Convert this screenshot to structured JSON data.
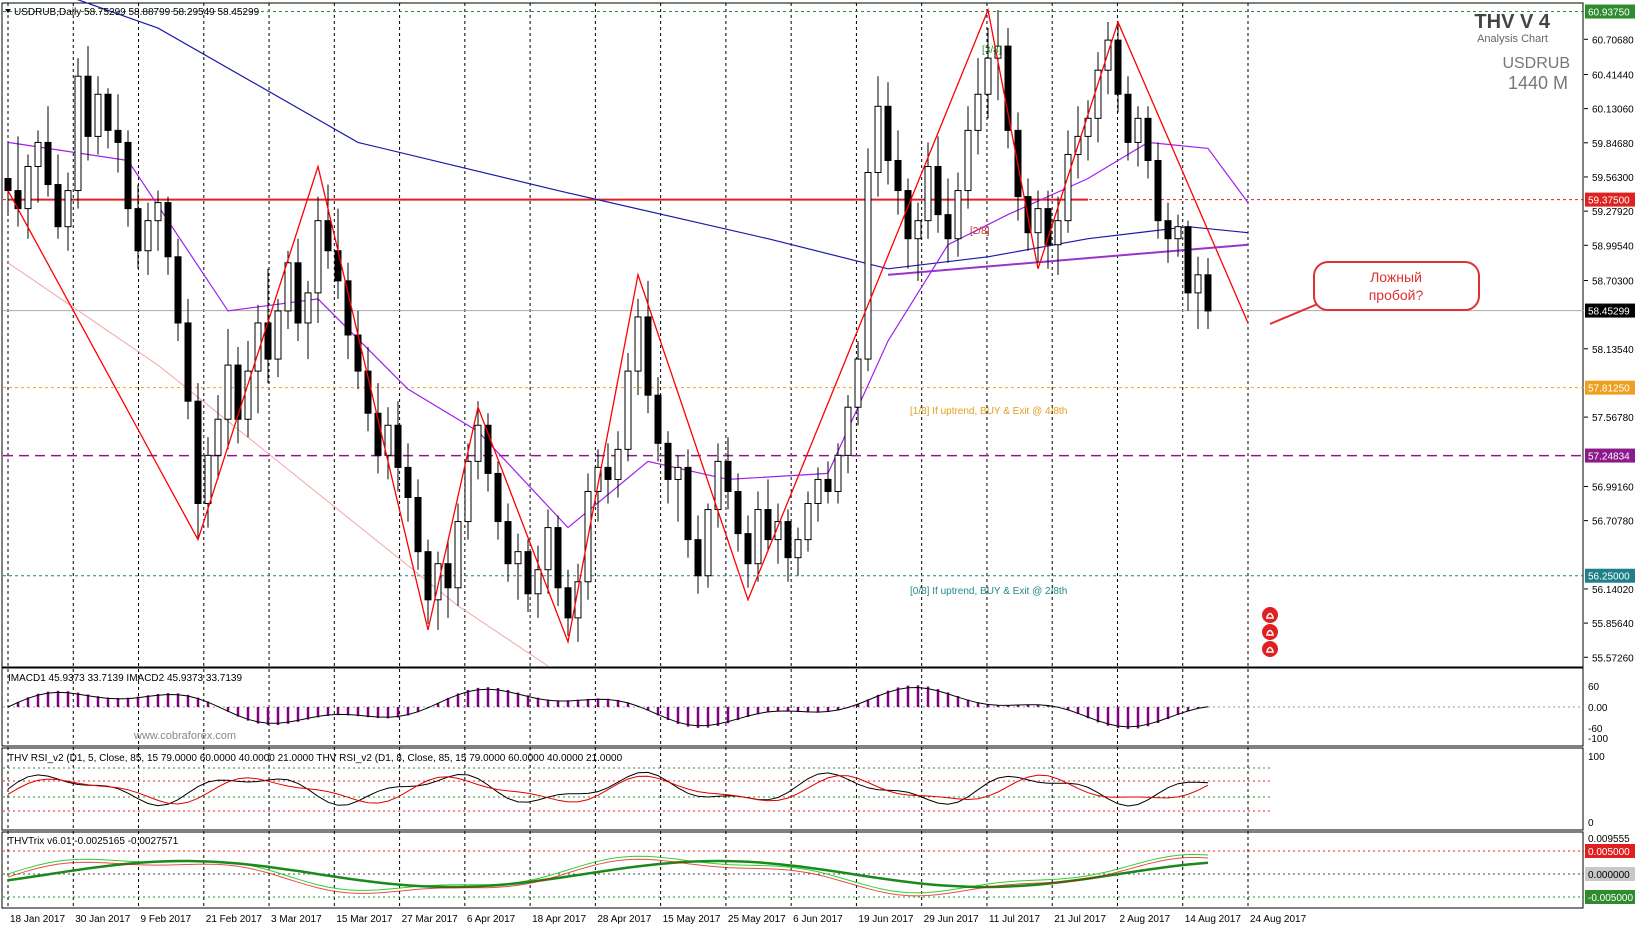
{
  "header": {
    "symbol_line": "USDRUB,Daily  58.75299 58.88799 58.29549 58.45299",
    "brand_title": "THV V 4",
    "brand_subtitle": "Analysis Chart",
    "symbol": "USDRUB",
    "timeframe": "1440 M",
    "watermark": "www.cobraforex.com"
  },
  "annotations": {
    "callout": [
      "Ложный",
      "пробой?"
    ],
    "murrey_top": "[3/8]",
    "murrey_mid": "[2/8]",
    "murrey_buy_4": "[1/8] If uptrend, BUY & Exit @ 4/8th",
    "murrey_buy_2": "[0/8] If uptrend, BUY & Exit @ 2/8th"
  },
  "colors": {
    "candle_up": "#ffffff",
    "candle_down": "#000000",
    "zigzag": "#ff0000",
    "ma_fast": "#a020f0",
    "ma_slow": "#1a1aa8",
    "ma_long": "#f4a6a6",
    "trendline": "#9933cc",
    "macd_hist": "#800080",
    "rsi_red": "#e00000",
    "trix_green": "#00b000",
    "trix_red": "#e00000"
  },
  "panels": {
    "macd": {
      "label": "IMACD1 45.9373 33.7139  IMACD2 45.9373 33.7139",
      "ticks": [
        "60",
        "0.00",
        "-60",
        "-100"
      ]
    },
    "rsi": {
      "label": "THV RSI_v2  (D1, 5, Close, 85, 15 79.0000 60.0000 40.0000 21.0000    THV RSI_v2  (D1, 8, Close, 85, 15 79.0000 60.0000 40.0000 21.0000",
      "ticks": [
        "100",
        "0"
      ]
    },
    "trix": {
      "label": "THVTrix v6.01 -0.0025165 -0.0027571",
      "ticks": [
        "0.009555",
        "0.005000",
        "0.000000",
        "-0.005000"
      ]
    }
  },
  "chart_data": {
    "type": "candlestick",
    "symbol": "USDRUB",
    "timeframe": "Daily",
    "ohlc_last": {
      "open": 58.75299,
      "high": 58.88799,
      "low": 58.29549,
      "close": 58.45299
    },
    "ylim": [
      55.5,
      61.0
    ],
    "y_ticks": [
      "60.70680",
      "60.41440",
      "60.13060",
      "59.84680",
      "59.56300",
      "59.27920",
      "58.99540",
      "58.70300",
      "58.13540",
      "57.56780",
      "56.99160",
      "56.70780",
      "56.14020",
      "55.85640",
      "55.57260"
    ],
    "x_ticks": [
      "18 Jan 2017",
      "30 Jan 2017",
      "9 Feb 2017",
      "21 Feb 2017",
      "3 Mar 2017",
      "15 Mar 2017",
      "27 Mar 2017",
      "6 Apr 2017",
      "18 Apr 2017",
      "28 Apr 2017",
      "15 May 2017",
      "25 May 2017",
      "6 Jun 2017",
      "19 Jun 2017",
      "29 Jun 2017",
      "11 Jul 2017",
      "21 Jul 2017",
      "2 Aug 2017",
      "14 Aug 2017",
      "24 Aug 2017"
    ],
    "price_levels": [
      {
        "value": 60.9375,
        "label": "60.93750",
        "color": "#2e8b2e"
      },
      {
        "value": 59.375,
        "label": "59.37500",
        "color": "#dd2222"
      },
      {
        "value": 58.45299,
        "label": "58.45299",
        "color": "#000000"
      },
      {
        "value": 57.8125,
        "label": "57.81250",
        "color": "#f0a020"
      },
      {
        "value": 57.24834,
        "label": "57.24834",
        "color": "#8b1a8b"
      },
      {
        "value": 56.25,
        "label": "56.25000",
        "color": "#20808a"
      }
    ],
    "candles": [
      [
        59.55,
        59.85,
        59.25,
        59.45
      ],
      [
        59.45,
        59.9,
        59.15,
        59.3
      ],
      [
        59.3,
        59.75,
        59.05,
        59.65
      ],
      [
        59.65,
        59.95,
        59.35,
        59.85
      ],
      [
        59.85,
        60.15,
        59.4,
        59.5
      ],
      [
        59.5,
        59.75,
        59.05,
        59.15
      ],
      [
        59.15,
        59.6,
        58.95,
        59.45
      ],
      [
        59.45,
        60.55,
        59.3,
        60.4
      ],
      [
        60.4,
        60.65,
        59.7,
        59.9
      ],
      [
        59.9,
        60.4,
        59.75,
        60.25
      ],
      [
        60.25,
        60.3,
        59.8,
        59.95
      ],
      [
        59.95,
        60.25,
        59.6,
        59.85
      ],
      [
        59.85,
        59.95,
        59.15,
        59.3
      ],
      [
        59.3,
        59.5,
        58.8,
        58.95
      ],
      [
        58.95,
        59.35,
        58.75,
        59.2
      ],
      [
        59.2,
        59.45,
        58.95,
        59.35
      ],
      [
        59.35,
        59.4,
        58.75,
        58.9
      ],
      [
        58.9,
        59.05,
        58.2,
        58.35
      ],
      [
        58.35,
        58.55,
        57.55,
        57.7
      ],
      [
        57.7,
        57.85,
        56.55,
        56.85
      ],
      [
        56.85,
        57.4,
        56.65,
        57.25
      ],
      [
        57.25,
        57.75,
        57.05,
        57.55
      ],
      [
        57.55,
        58.3,
        57.3,
        58.0
      ],
      [
        58.0,
        58.15,
        57.35,
        57.55
      ],
      [
        57.55,
        58.2,
        57.4,
        57.95
      ],
      [
        57.95,
        58.5,
        57.6,
        58.35
      ],
      [
        58.35,
        58.8,
        57.85,
        58.05
      ],
      [
        58.05,
        58.55,
        57.9,
        58.45
      ],
      [
        58.45,
        58.95,
        58.3,
        58.85
      ],
      [
        58.85,
        59.05,
        58.2,
        58.35
      ],
      [
        58.35,
        58.7,
        58.05,
        58.6
      ],
      [
        58.6,
        59.4,
        58.35,
        59.2
      ],
      [
        59.2,
        59.5,
        58.8,
        58.95
      ],
      [
        58.95,
        59.3,
        58.55,
        58.7
      ],
      [
        58.7,
        58.85,
        58.05,
        58.25
      ],
      [
        58.25,
        58.45,
        57.8,
        57.95
      ],
      [
        57.95,
        58.15,
        57.45,
        57.6
      ],
      [
        57.6,
        57.85,
        57.1,
        57.25
      ],
      [
        57.25,
        57.65,
        57.05,
        57.5
      ],
      [
        57.5,
        57.7,
        56.95,
        57.15
      ],
      [
        57.15,
        57.35,
        56.7,
        56.9
      ],
      [
        56.9,
        57.05,
        56.3,
        56.45
      ],
      [
        56.45,
        56.55,
        55.85,
        56.05
      ],
      [
        56.05,
        56.45,
        55.8,
        56.35
      ],
      [
        56.35,
        56.55,
        55.9,
        56.15
      ],
      [
        56.15,
        56.85,
        56.0,
        56.7
      ],
      [
        56.7,
        57.35,
        56.55,
        57.2
      ],
      [
        57.2,
        57.7,
        57.05,
        57.5
      ],
      [
        57.5,
        57.6,
        56.95,
        57.1
      ],
      [
        57.1,
        57.2,
        56.55,
        56.7
      ],
      [
        56.7,
        56.85,
        56.2,
        56.35
      ],
      [
        56.35,
        56.6,
        56.05,
        56.45
      ],
      [
        56.45,
        56.55,
        55.95,
        56.1
      ],
      [
        56.1,
        56.5,
        55.9,
        56.3
      ],
      [
        56.3,
        56.8,
        56.1,
        56.65
      ],
      [
        56.65,
        56.75,
        56.0,
        56.15
      ],
      [
        56.15,
        56.3,
        55.75,
        55.9
      ],
      [
        55.9,
        56.35,
        55.7,
        56.2
      ],
      [
        56.2,
        57.1,
        56.05,
        56.95
      ],
      [
        56.95,
        57.3,
        56.7,
        57.15
      ],
      [
        57.15,
        57.35,
        56.85,
        57.05
      ],
      [
        57.05,
        57.45,
        56.9,
        57.3
      ],
      [
        57.3,
        58.1,
        57.2,
        57.95
      ],
      [
        57.95,
        58.55,
        57.75,
        58.4
      ],
      [
        58.4,
        58.7,
        57.6,
        57.75
      ],
      [
        57.75,
        57.9,
        57.2,
        57.35
      ],
      [
        57.35,
        57.45,
        56.85,
        57.05
      ],
      [
        57.05,
        57.25,
        56.7,
        57.15
      ],
      [
        57.15,
        57.3,
        56.4,
        56.55
      ],
      [
        56.55,
        56.75,
        56.1,
        56.25
      ],
      [
        56.25,
        56.85,
        56.15,
        56.8
      ],
      [
        56.8,
        57.35,
        56.65,
        57.2
      ],
      [
        57.2,
        57.4,
        56.8,
        56.95
      ],
      [
        56.95,
        57.1,
        56.45,
        56.6
      ],
      [
        56.6,
        56.75,
        56.15,
        56.35
      ],
      [
        56.35,
        56.95,
        56.2,
        56.8
      ],
      [
        56.8,
        57.05,
        56.45,
        56.55
      ],
      [
        56.55,
        56.85,
        56.35,
        56.7
      ],
      [
        56.7,
        56.8,
        56.2,
        56.4
      ],
      [
        56.4,
        56.65,
        56.25,
        56.55
      ],
      [
        56.55,
        56.95,
        56.45,
        56.85
      ],
      [
        56.85,
        57.15,
        56.7,
        57.05
      ],
      [
        57.05,
        57.2,
        56.85,
        56.95
      ],
      [
        56.95,
        57.35,
        56.85,
        57.25
      ],
      [
        57.25,
        57.75,
        57.1,
        57.65
      ],
      [
        57.65,
        58.2,
        57.5,
        58.05
      ],
      [
        58.05,
        59.8,
        57.95,
        59.6
      ],
      [
        59.6,
        60.4,
        59.4,
        60.15
      ],
      [
        60.15,
        60.35,
        59.5,
        59.7
      ],
      [
        59.7,
        59.95,
        59.25,
        59.45
      ],
      [
        59.45,
        59.55,
        58.8,
        59.05
      ],
      [
        59.05,
        59.35,
        58.7,
        59.2
      ],
      [
        59.2,
        59.85,
        59.05,
        59.65
      ],
      [
        59.65,
        59.9,
        59.1,
        59.25
      ],
      [
        59.25,
        59.55,
        58.85,
        59.05
      ],
      [
        59.05,
        59.6,
        58.9,
        59.45
      ],
      [
        59.45,
        60.15,
        59.3,
        59.95
      ],
      [
        59.95,
        60.55,
        59.75,
        60.25
      ],
      [
        60.25,
        60.8,
        60.05,
        60.55
      ],
      [
        60.55,
        60.95,
        60.2,
        60.65
      ],
      [
        60.65,
        60.8,
        59.8,
        59.95
      ],
      [
        59.95,
        60.1,
        59.2,
        59.4
      ],
      [
        59.4,
        59.55,
        58.95,
        59.1
      ],
      [
        59.1,
        59.45,
        58.85,
        59.3
      ],
      [
        59.3,
        59.45,
        58.8,
        59.0
      ],
      [
        59.0,
        59.4,
        58.75,
        59.2
      ],
      [
        59.2,
        59.95,
        59.1,
        59.75
      ],
      [
        59.75,
        60.15,
        59.55,
        59.9
      ],
      [
        59.9,
        60.2,
        59.7,
        60.05
      ],
      [
        60.05,
        60.6,
        59.85,
        60.45
      ],
      [
        60.45,
        60.85,
        60.25,
        60.7
      ],
      [
        60.7,
        60.85,
        60.1,
        60.25
      ],
      [
        60.25,
        60.4,
        59.7,
        59.85
      ],
      [
        59.85,
        60.15,
        59.65,
        60.05
      ],
      [
        60.05,
        60.15,
        59.55,
        59.7
      ],
      [
        59.7,
        59.85,
        59.05,
        59.2
      ],
      [
        59.2,
        59.35,
        58.85,
        59.05
      ],
      [
        59.05,
        59.25,
        58.9,
        59.15
      ],
      [
        59.15,
        59.2,
        58.45,
        58.6
      ],
      [
        58.6,
        58.9,
        58.3,
        58.75
      ],
      [
        58.75,
        58.89,
        58.3,
        58.45
      ]
    ],
    "zigzag": [
      [
        0,
        59.45
      ],
      [
        19,
        56.55
      ],
      [
        31,
        59.65
      ],
      [
        42,
        55.8
      ],
      [
        47,
        57.65
      ],
      [
        56,
        55.7
      ],
      [
        63,
        58.75
      ],
      [
        74,
        56.05
      ],
      [
        98,
        60.95
      ],
      [
        103,
        58.8
      ],
      [
        111,
        60.85
      ],
      [
        124,
        58.35
      ]
    ],
    "ma_fast": [
      [
        0,
        59.85
      ],
      [
        12,
        59.7
      ],
      [
        22,
        58.45
      ],
      [
        31,
        58.55
      ],
      [
        40,
        57.8
      ],
      [
        47,
        57.45
      ],
      [
        56,
        56.65
      ],
      [
        64,
        57.2
      ],
      [
        72,
        57.05
      ],
      [
        82,
        57.1
      ],
      [
        88,
        58.2
      ],
      [
        94,
        59.0
      ],
      [
        100,
        59.25
      ],
      [
        108,
        59.55
      ],
      [
        114,
        59.85
      ],
      [
        120,
        59.8
      ],
      [
        124,
        59.35
      ]
    ],
    "ma_slow": [
      [
        -2,
        61.3
      ],
      [
        15,
        60.8
      ],
      [
        35,
        59.85
      ],
      [
        55,
        59.45
      ],
      [
        76,
        59.05
      ],
      [
        88,
        58.8
      ],
      [
        98,
        58.9
      ],
      [
        108,
        59.05
      ],
      [
        118,
        59.15
      ],
      [
        124,
        59.1
      ]
    ],
    "ma_long": [
      [
        0,
        58.85
      ],
      [
        15,
        58.0
      ],
      [
        30,
        57.0
      ],
      [
        45,
        56.0
      ],
      [
        54,
        55.5
      ]
    ],
    "trendline": [
      [
        88,
        58.75
      ],
      [
        124,
        59.0
      ]
    ],
    "resistance": {
      "value": 59.375,
      "from": 0,
      "to": 108
    }
  }
}
